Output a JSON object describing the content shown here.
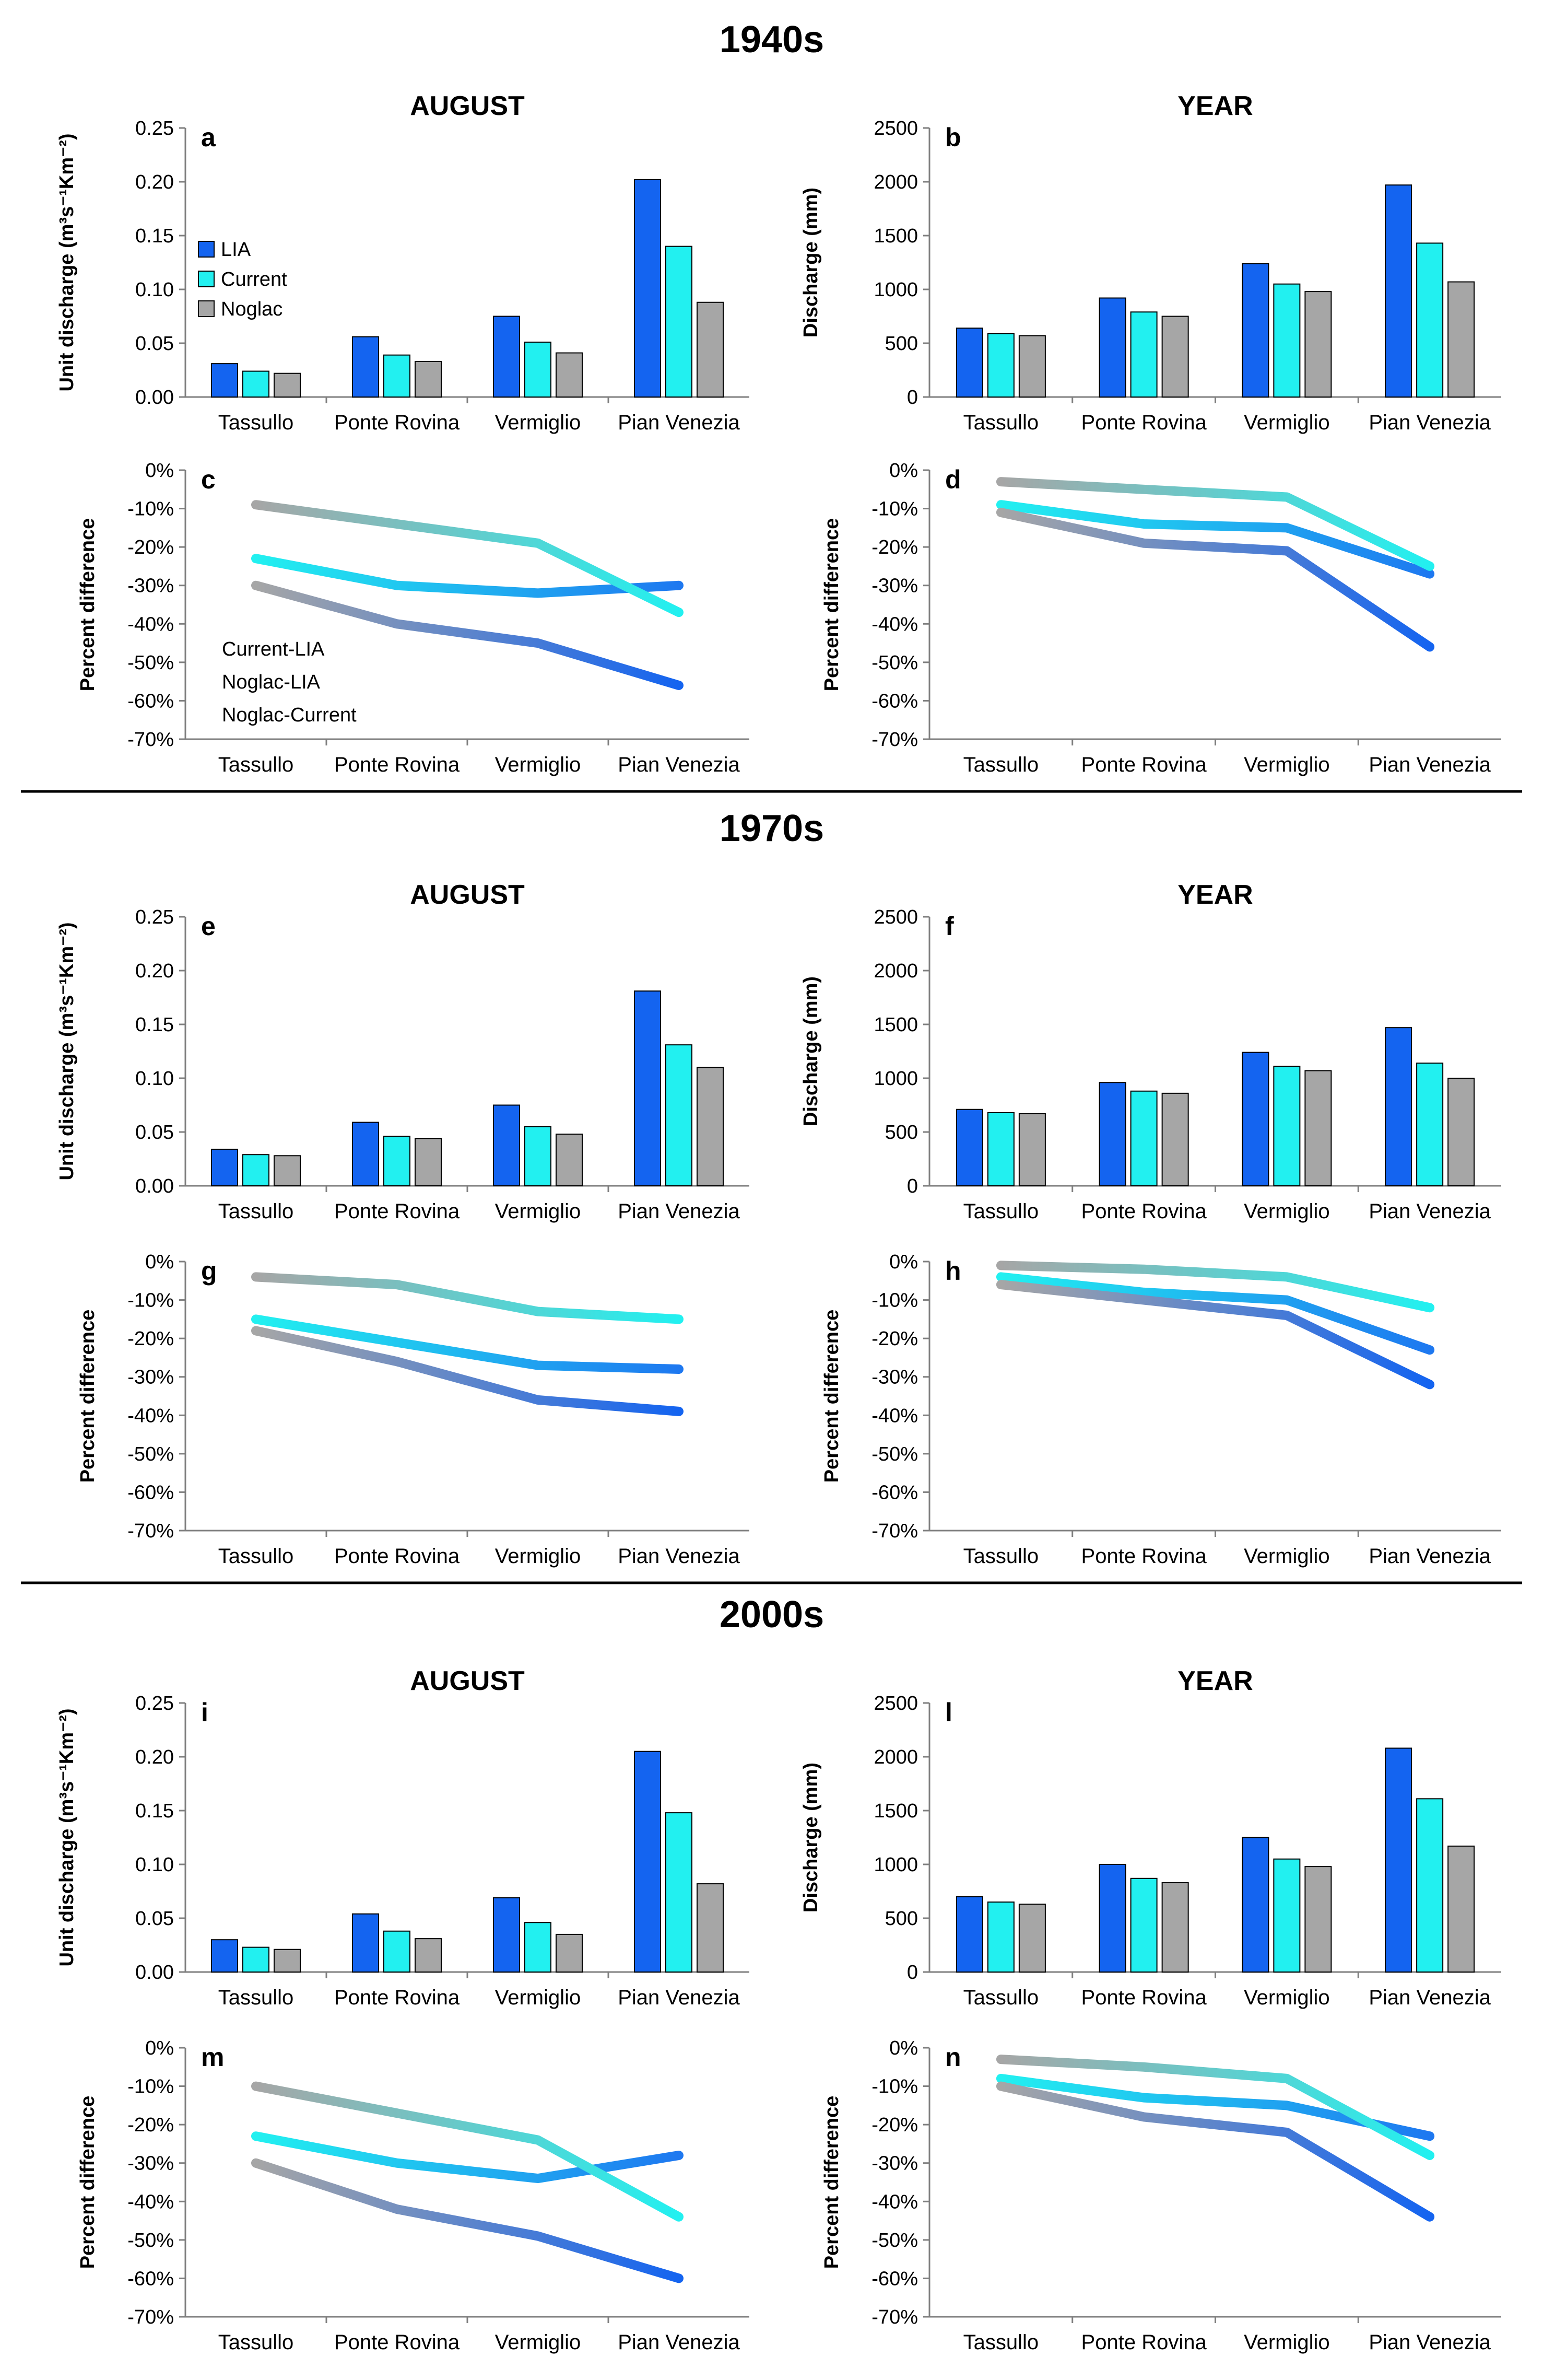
{
  "colors": {
    "LIA": "#1464F0",
    "Current": "#22F0F0",
    "Noglac": "#A6A6A6",
    "Current-LIA": [
      "#22F0F0",
      "#1E78F0"
    ],
    "Noglac-LIA": [
      "#A6A6A6",
      "#1464F0"
    ],
    "Noglac-Current": [
      "#A6A6A6",
      "#22F0F0"
    ]
  },
  "sections": [
    {
      "title": "1940s"
    },
    {
      "title": "1970s"
    },
    {
      "title": "2000s"
    }
  ],
  "legend": {
    "bars": [
      "LIA",
      "Current",
      "Noglac"
    ],
    "lines": [
      "Current-LIA",
      "Noglac-LIA",
      "Noglac-Current"
    ]
  },
  "chart_data": [
    {
      "panel": "a",
      "section": "1940s",
      "type": "bar",
      "title": "AUGUST",
      "categories": [
        "Tassullo",
        "Ponte Rovina",
        "Vermiglio",
        "Pian Venezia"
      ],
      "ylabel": "Unit discharge (m³s⁻¹Km⁻²)",
      "ylim": [
        0,
        0.25
      ],
      "yticks": [
        "0.00",
        "0.05",
        "0.10",
        "0.15",
        "0.20",
        "0.25"
      ],
      "series": [
        {
          "name": "LIA",
          "values": [
            0.031,
            0.056,
            0.075,
            0.202
          ]
        },
        {
          "name": "Current",
          "values": [
            0.024,
            0.039,
            0.051,
            0.14
          ]
        },
        {
          "name": "Noglac",
          "values": [
            0.022,
            0.033,
            0.041,
            0.088
          ]
        }
      ]
    },
    {
      "panel": "b",
      "section": "1940s",
      "type": "bar",
      "title": "YEAR",
      "categories": [
        "Tassullo",
        "Ponte Rovina",
        "Vermiglio",
        "Pian Venezia"
      ],
      "ylabel": "Discharge (mm)",
      "ylim": [
        0,
        2500
      ],
      "yticks": [
        "0",
        "500",
        "1000",
        "1500",
        "2000",
        "2500"
      ],
      "series": [
        {
          "name": "LIA",
          "values": [
            640,
            920,
            1240,
            1970
          ]
        },
        {
          "name": "Current",
          "values": [
            590,
            790,
            1050,
            1430
          ]
        },
        {
          "name": "Noglac",
          "values": [
            570,
            750,
            980,
            1070
          ]
        }
      ]
    },
    {
      "panel": "c",
      "section": "1940s",
      "type": "line",
      "categories": [
        "Tassullo",
        "Ponte Rovina",
        "Vermiglio",
        "Pian Venezia"
      ],
      "ylabel": "Percent difference",
      "ylim": [
        -70,
        0
      ],
      "yticks": [
        "0%",
        "-10%",
        "-20%",
        "-30%",
        "-40%",
        "-50%",
        "-60%",
        "-70%"
      ],
      "series": [
        {
          "name": "Current-LIA",
          "values": [
            -23,
            -30,
            -32,
            -30
          ]
        },
        {
          "name": "Noglac-LIA",
          "values": [
            -30,
            -40,
            -45,
            -56
          ]
        },
        {
          "name": "Noglac-Current",
          "values": [
            -9,
            -14,
            -19,
            -37
          ]
        }
      ]
    },
    {
      "panel": "d",
      "section": "1940s",
      "type": "line",
      "categories": [
        "Tassullo",
        "Ponte Rovina",
        "Vermiglio",
        "Pian Venezia"
      ],
      "ylabel": "Percent difference",
      "ylim": [
        -70,
        0
      ],
      "yticks": [
        "0%",
        "-10%",
        "-20%",
        "-30%",
        "-40%",
        "-50%",
        "-60%",
        "-70%"
      ],
      "series": [
        {
          "name": "Current-LIA",
          "values": [
            -9,
            -14,
            -15,
            -27
          ]
        },
        {
          "name": "Noglac-LIA",
          "values": [
            -11,
            -19,
            -21,
            -46
          ]
        },
        {
          "name": "Noglac-Current",
          "values": [
            -3,
            -5,
            -7,
            -25
          ]
        }
      ]
    },
    {
      "panel": "e",
      "section": "1970s",
      "type": "bar",
      "title": "AUGUST",
      "categories": [
        "Tassullo",
        "Ponte Rovina",
        "Vermiglio",
        "Pian Venezia"
      ],
      "ylabel": "Unit discharge (m³s⁻¹Km⁻²)",
      "ylim": [
        0,
        0.25
      ],
      "yticks": [
        "0.00",
        "0.05",
        "0.10",
        "0.15",
        "0.20",
        "0.25"
      ],
      "series": [
        {
          "name": "LIA",
          "values": [
            0.034,
            0.059,
            0.075,
            0.181
          ]
        },
        {
          "name": "Current",
          "values": [
            0.029,
            0.046,
            0.055,
            0.131
          ]
        },
        {
          "name": "Noglac",
          "values": [
            0.028,
            0.044,
            0.048,
            0.11
          ]
        }
      ]
    },
    {
      "panel": "f",
      "section": "1970s",
      "type": "bar",
      "title": "YEAR",
      "categories": [
        "Tassullo",
        "Ponte Rovina",
        "Vermiglio",
        "Pian Venezia"
      ],
      "ylabel": "Discharge (mm)",
      "ylim": [
        0,
        2500
      ],
      "yticks": [
        "0",
        "500",
        "1000",
        "1500",
        "2000",
        "2500"
      ],
      "series": [
        {
          "name": "LIA",
          "values": [
            710,
            960,
            1240,
            1470
          ]
        },
        {
          "name": "Current",
          "values": [
            680,
            880,
            1110,
            1140
          ]
        },
        {
          "name": "Noglac",
          "values": [
            670,
            860,
            1070,
            1000
          ]
        }
      ]
    },
    {
      "panel": "g",
      "section": "1970s",
      "type": "line",
      "categories": [
        "Tassullo",
        "Ponte Rovina",
        "Vermiglio",
        "Pian Venezia"
      ],
      "ylabel": "Percent difference",
      "ylim": [
        -70,
        0
      ],
      "yticks": [
        "0%",
        "-10%",
        "-20%",
        "-30%",
        "-40%",
        "-50%",
        "-60%",
        "-70%"
      ],
      "series": [
        {
          "name": "Current-LIA",
          "values": [
            -15,
            -21,
            -27,
            -28
          ]
        },
        {
          "name": "Noglac-LIA",
          "values": [
            -18,
            -26,
            -36,
            -39
          ]
        },
        {
          "name": "Noglac-Current",
          "values": [
            -4,
            -6,
            -13,
            -15
          ]
        }
      ]
    },
    {
      "panel": "h",
      "section": "1970s",
      "type": "line",
      "categories": [
        "Tassullo",
        "Ponte Rovina",
        "Vermiglio",
        "Pian Venezia"
      ],
      "ylabel": "Percent difference",
      "ylim": [
        -70,
        0
      ],
      "yticks": [
        "0%",
        "-10%",
        "-20%",
        "-30%",
        "-40%",
        "-50%",
        "-60%",
        "-70%"
      ],
      "series": [
        {
          "name": "Current-LIA",
          "values": [
            -4,
            -8,
            -10,
            -23
          ]
        },
        {
          "name": "Noglac-LIA",
          "values": [
            -6,
            -10,
            -14,
            -32
          ]
        },
        {
          "name": "Noglac-Current",
          "values": [
            -1,
            -2,
            -4,
            -12
          ]
        }
      ]
    },
    {
      "panel": "i",
      "section": "2000s",
      "type": "bar",
      "title": "AUGUST",
      "categories": [
        "Tassullo",
        "Ponte Rovina",
        "Vermiglio",
        "Pian Venezia"
      ],
      "ylabel": "Unit discharge (m³s⁻¹Km⁻²)",
      "ylim": [
        0,
        0.25
      ],
      "yticks": [
        "0.00",
        "0.05",
        "0.10",
        "0.15",
        "0.20",
        "0.25"
      ],
      "series": [
        {
          "name": "LIA",
          "values": [
            0.03,
            0.054,
            0.069,
            0.205
          ]
        },
        {
          "name": "Current",
          "values": [
            0.023,
            0.038,
            0.046,
            0.148
          ]
        },
        {
          "name": "Noglac",
          "values": [
            0.021,
            0.031,
            0.035,
            0.082
          ]
        }
      ]
    },
    {
      "panel": "l",
      "section": "2000s",
      "type": "bar",
      "title": "YEAR",
      "categories": [
        "Tassullo",
        "Ponte Rovina",
        "Vermiglio",
        "Pian Venezia"
      ],
      "ylabel": "Discharge (mm)",
      "ylim": [
        0,
        2500
      ],
      "yticks": [
        "0",
        "500",
        "1000",
        "1500",
        "2000",
        "2500"
      ],
      "series": [
        {
          "name": "LIA",
          "values": [
            700,
            1000,
            1250,
            2080
          ]
        },
        {
          "name": "Current",
          "values": [
            650,
            870,
            1050,
            1610
          ]
        },
        {
          "name": "Noglac",
          "values": [
            630,
            830,
            980,
            1170
          ]
        }
      ]
    },
    {
      "panel": "m",
      "section": "2000s",
      "type": "line",
      "categories": [
        "Tassullo",
        "Ponte Rovina",
        "Vermiglio",
        "Pian Venezia"
      ],
      "ylabel": "Percent difference",
      "ylim": [
        -70,
        0
      ],
      "yticks": [
        "0%",
        "-10%",
        "-20%",
        "-30%",
        "-40%",
        "-50%",
        "-60%",
        "-70%"
      ],
      "series": [
        {
          "name": "Current-LIA",
          "values": [
            -23,
            -30,
            -34,
            -28
          ]
        },
        {
          "name": "Noglac-LIA",
          "values": [
            -30,
            -42,
            -49,
            -60
          ]
        },
        {
          "name": "Noglac-Current",
          "values": [
            -10,
            -17,
            -24,
            -44
          ]
        }
      ]
    },
    {
      "panel": "n",
      "section": "2000s",
      "type": "line",
      "categories": [
        "Tassullo",
        "Ponte Rovina",
        "Vermiglio",
        "Pian Venezia"
      ],
      "ylabel": "Percent difference",
      "ylim": [
        -70,
        0
      ],
      "yticks": [
        "0%",
        "-10%",
        "-20%",
        "-30%",
        "-40%",
        "-50%",
        "-60%",
        "-70%"
      ],
      "series": [
        {
          "name": "Current-LIA",
          "values": [
            -8,
            -13,
            -15,
            -23
          ]
        },
        {
          "name": "Noglac-LIA",
          "values": [
            -10,
            -18,
            -22,
            -44
          ]
        },
        {
          "name": "Noglac-Current",
          "values": [
            -3,
            -5,
            -8,
            -28
          ]
        }
      ]
    }
  ]
}
